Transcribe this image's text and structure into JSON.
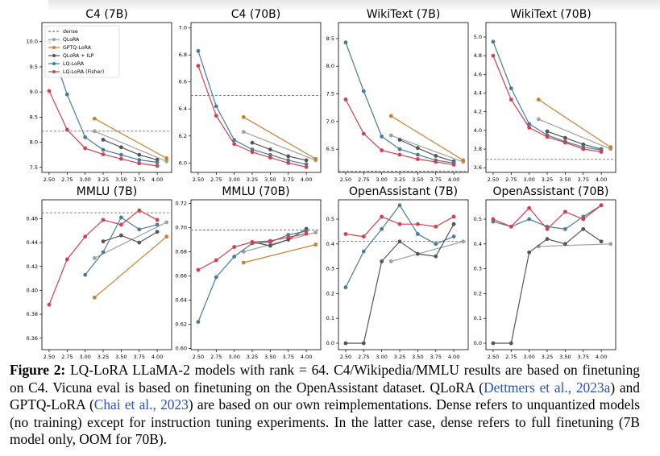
{
  "chart_data": [
    {
      "type": "line",
      "title": "C4 (7B)",
      "legend": "upper left",
      "xlim": [
        2.4,
        4.2
      ],
      "xticks": [
        {
          "value": 2.5,
          "label": "2.50"
        },
        2.75,
        {
          "value": 3.0,
          "label": "3.00"
        },
        3.25,
        {
          "value": 3.5,
          "label": "3.50"
        },
        3.75,
        {
          "value": 4.0,
          "label": "4.00"
        }
      ],
      "ylim": [
        7.4,
        10.38
      ],
      "yticks": [
        7.5,
        {
          "value": 8.0,
          "label": "8.0"
        },
        8.5,
        {
          "value": 9.0,
          "label": "9.0"
        },
        9.5,
        {
          "value": 10.0,
          "label": "10.0"
        }
      ],
      "series": [
        {
          "name": "dense",
          "color": "#777777",
          "dashed": true,
          "values": [
            8.22
          ]
        },
        {
          "name": "QLoRA",
          "color": "#a0a0a0",
          "x": [
            3.13,
            4.13
          ],
          "values": [
            8.22,
            7.62
          ]
        },
        {
          "name": "GPTQ-LoRA",
          "color": "#c8802e",
          "x": [
            3.13,
            4.13
          ],
          "values": [
            8.47,
            7.68
          ]
        },
        {
          "name": "QLoRA + ILP",
          "color": "#555555",
          "x": [
            3.25,
            3.5,
            3.75,
            4.0
          ],
          "values": [
            8.05,
            7.9,
            7.75,
            7.65
          ]
        },
        {
          "name": "LQ-LoRA",
          "color": "#4a7b9d",
          "x": [
            2.5,
            2.75,
            3.0,
            3.25,
            3.5,
            3.75,
            4.0
          ],
          "values": [
            10.0,
            8.95,
            8.1,
            7.85,
            7.75,
            7.65,
            7.6
          ]
        },
        {
          "name": "LQ-LoRA (Fisher)",
          "color": "#d6404e",
          "x": [
            2.5,
            2.75,
            3.0,
            3.25,
            3.5,
            3.75,
            4.0
          ],
          "values": [
            9.02,
            8.25,
            7.88,
            7.76,
            7.67,
            7.58,
            7.53
          ]
        }
      ]
    },
    {
      "type": "line",
      "title": "C4 (70B)",
      "xlim": [
        2.4,
        4.2
      ],
      "xticks": [
        {
          "value": 2.5,
          "label": "2.50"
        },
        2.75,
        {
          "value": 3.0,
          "label": "3.00"
        },
        3.25,
        {
          "value": 3.5,
          "label": "3.50"
        },
        3.75,
        {
          "value": 4.0,
          "label": "4.00"
        }
      ],
      "ylim": [
        5.93,
        7.04
      ],
      "yticks": [
        {
          "value": 6.0,
          "label": "6.0"
        },
        6.2,
        6.4,
        6.6,
        6.8,
        {
          "value": 7.0,
          "label": "7.0"
        }
      ],
      "series": [
        {
          "color": "#777777",
          "dashed": true,
          "values": [
            6.5
          ]
        },
        {
          "color": "#a0a0a0",
          "x": [
            3.13,
            4.13
          ],
          "values": [
            6.23,
            6.02
          ]
        },
        {
          "color": "#c8802e",
          "x": [
            3.13,
            4.13
          ],
          "values": [
            6.34,
            6.03
          ]
        },
        {
          "color": "#555555",
          "x": [
            3.25,
            3.5,
            3.75,
            4.0
          ],
          "values": [
            6.15,
            6.1,
            6.05,
            6.02
          ]
        },
        {
          "color": "#4a7b9d",
          "x": [
            2.5,
            2.75,
            3.0,
            3.25,
            3.5,
            3.75,
            4.0
          ],
          "values": [
            6.83,
            6.42,
            6.17,
            6.1,
            6.06,
            6.02,
            5.99
          ]
        },
        {
          "color": "#d6404e",
          "x": [
            2.5,
            2.75,
            3.0,
            3.25,
            3.5,
            3.75,
            4.0
          ],
          "values": [
            6.72,
            6.35,
            6.14,
            6.08,
            6.04,
            6.0,
            5.97
          ]
        }
      ]
    },
    {
      "type": "line",
      "title": "WikiText (7B)",
      "xlim": [
        2.4,
        4.2
      ],
      "xticks": [
        {
          "value": 2.5,
          "label": "2.50"
        },
        2.75,
        {
          "value": 3.0,
          "label": "3.00"
        },
        3.25,
        {
          "value": 3.5,
          "label": "3.50"
        },
        3.75,
        {
          "value": 4.0,
          "label": "4.00"
        }
      ],
      "ylim": [
        6.08,
        8.79
      ],
      "yticks": [
        6.5,
        {
          "value": 7.0,
          "label": "7.0"
        },
        7.5,
        {
          "value": 8.0,
          "label": "8.0"
        },
        8.5
      ],
      "series": [
        {
          "color": "#777777",
          "dashed": true,
          "values": [
            6.1
          ]
        },
        {
          "color": "#a0a0a0",
          "x": [
            3.13,
            4.13
          ],
          "values": [
            6.75,
            6.27
          ]
        },
        {
          "color": "#c8802e",
          "x": [
            3.13,
            4.13
          ],
          "values": [
            7.1,
            6.3
          ]
        },
        {
          "color": "#555555",
          "x": [
            3.25,
            3.5,
            3.75,
            4.0
          ],
          "values": [
            6.67,
            6.52,
            6.38,
            6.28
          ]
        },
        {
          "color": "#4a7b9d",
          "x": [
            2.5,
            2.75,
            3.0,
            3.25,
            3.5,
            3.75,
            4.0
          ],
          "values": [
            8.43,
            7.55,
            6.73,
            6.5,
            6.4,
            6.3,
            6.25
          ]
        },
        {
          "color": "#d6404e",
          "x": [
            2.5,
            2.75,
            3.0,
            3.25,
            3.5,
            3.75,
            4.0
          ],
          "values": [
            7.4,
            6.78,
            6.48,
            6.4,
            6.32,
            6.27,
            6.22
          ]
        }
      ]
    },
    {
      "type": "line",
      "title": "WikiText (70B)",
      "xlim": [
        2.4,
        4.2
      ],
      "xticks": [
        {
          "value": 2.5,
          "label": "2.50"
        },
        2.75,
        {
          "value": 3.0,
          "label": "3.00"
        },
        3.25,
        {
          "value": 3.5,
          "label": "3.50"
        },
        3.75,
        {
          "value": 4.0,
          "label": "4.00"
        }
      ],
      "ylim": [
        3.55,
        5.155
      ],
      "yticks": [
        3.6,
        3.8,
        {
          "value": 4.0,
          "label": "4.0"
        },
        4.2,
        4.4,
        4.6,
        4.8,
        {
          "value": 5.0,
          "label": "5.0"
        }
      ],
      "series": [
        {
          "color": "#777777",
          "dashed": true,
          "values": [
            3.69
          ]
        },
        {
          "color": "#a0a0a0",
          "x": [
            3.13,
            4.13
          ],
          "values": [
            4.12,
            3.8
          ]
        },
        {
          "color": "#c8802e",
          "x": [
            3.13,
            4.13
          ],
          "values": [
            4.33,
            3.82
          ]
        },
        {
          "color": "#555555",
          "x": [
            3.25,
            3.5,
            3.75,
            4.0
          ],
          "values": [
            3.99,
            3.92,
            3.85,
            3.8
          ]
        },
        {
          "color": "#4a7b9d",
          "x": [
            2.5,
            2.75,
            3.0,
            3.25,
            3.5,
            3.75,
            4.0
          ],
          "values": [
            4.95,
            4.45,
            4.07,
            3.95,
            3.88,
            3.82,
            3.79
          ]
        },
        {
          "color": "#d6404e",
          "x": [
            2.5,
            2.75,
            3.0,
            3.25,
            3.5,
            3.75,
            4.0
          ],
          "values": [
            4.8,
            4.33,
            4.03,
            3.93,
            3.87,
            3.8,
            3.77
          ]
        }
      ]
    },
    {
      "type": "line",
      "title": "MMLU (7B)",
      "xlim": [
        2.4,
        4.2
      ],
      "xticks": [
        {
          "value": 2.5,
          "label": "2.50"
        },
        2.75,
        {
          "value": 3.0,
          "label": "3.00"
        },
        3.25,
        {
          "value": 3.5,
          "label": "3.50"
        },
        3.75,
        {
          "value": 4.0,
          "label": "4.00"
        }
      ],
      "ylim": [
        0.3504,
        0.4758
      ],
      "yticks": [
        0.36,
        0.38,
        {
          "value": 0.4,
          "label": "0.40"
        },
        0.42,
        0.44,
        0.46
      ],
      "series": [
        {
          "color": "#777777",
          "dashed": true,
          "values": [
            0.465
          ]
        },
        {
          "color": "#a0a0a0",
          "x": [
            3.13,
            4.13
          ],
          "values": [
            0.427,
            0.457
          ]
        },
        {
          "color": "#c8802e",
          "x": [
            3.13,
            4.13
          ],
          "values": [
            0.394,
            0.445
          ]
        },
        {
          "color": "#555555",
          "x": [
            3.25,
            3.5,
            3.75,
            4.0
          ],
          "values": [
            0.441,
            0.446,
            0.44,
            0.449
          ]
        },
        {
          "color": "#4a7b9d",
          "x": [
            3.0,
            3.25,
            3.5,
            3.75,
            4.0
          ],
          "values": [
            0.413,
            0.432,
            0.461,
            0.451,
            0.455
          ]
        },
        {
          "color": "#d6404e",
          "x": [
            2.5,
            2.75,
            3.0,
            3.25,
            3.5,
            3.75,
            4.0
          ],
          "values": [
            0.388,
            0.426,
            0.445,
            0.459,
            0.455,
            0.467,
            0.459
          ]
        }
      ]
    },
    {
      "type": "line",
      "title": "MMLU (70B)",
      "xlim": [
        2.4,
        4.2
      ],
      "xticks": [
        {
          "value": 2.5,
          "label": "2.50"
        },
        2.75,
        {
          "value": 3.0,
          "label": "3.00"
        },
        3.25,
        {
          "value": 3.5,
          "label": "3.50"
        },
        3.75,
        {
          "value": 4.0,
          "label": "4.00"
        }
      ],
      "ylim": [
        0.599,
        0.723
      ],
      "yticks": [
        {
          "value": 0.6,
          "label": "0.60"
        },
        0.62,
        0.64,
        0.66,
        0.68,
        {
          "value": 0.7,
          "label": "0.70"
        },
        0.72
      ],
      "series": [
        {
          "color": "#777777",
          "dashed": true,
          "values": [
            0.698
          ]
        },
        {
          "color": "#a0a0a0",
          "x": [
            3.13,
            4.13
          ],
          "values": [
            0.68,
            0.696
          ]
        },
        {
          "color": "#c8802e",
          "x": [
            3.13,
            4.13
          ],
          "values": [
            0.671,
            0.686
          ]
        },
        {
          "color": "#555555",
          "x": [
            3.25,
            3.5,
            3.75,
            4.0
          ],
          "values": [
            0.688,
            0.685,
            0.69,
            0.699
          ]
        },
        {
          "color": "#4a7b9d",
          "x": [
            2.5,
            2.75,
            3.0,
            3.25,
            3.5,
            3.75,
            4.0
          ],
          "values": [
            0.622,
            0.659,
            0.676,
            0.687,
            0.688,
            0.694,
            0.697
          ]
        },
        {
          "color": "#d6404e",
          "x": [
            2.5,
            2.75,
            3.0,
            3.25,
            3.5,
            3.75,
            4.0
          ],
          "values": [
            0.665,
            0.673,
            0.684,
            0.688,
            0.689,
            0.692,
            0.695
          ]
        }
      ]
    },
    {
      "type": "line",
      "title": "OpenAssistant (7B)",
      "xlim": [
        2.4,
        4.2
      ],
      "xticks": [
        {
          "value": 2.5,
          "label": "2.50"
        },
        2.75,
        {
          "value": 3.0,
          "label": "3.00"
        },
        3.25,
        {
          "value": 3.5,
          "label": "3.50"
        },
        3.75,
        {
          "value": 4.0,
          "label": "4.00"
        }
      ],
      "ylim": [
        -0.026,
        0.578
      ],
      "yticks": [
        {
          "value": 0,
          "label": "0.0"
        },
        0.1,
        0.2,
        0.3,
        0.4,
        0.5
      ],
      "series": [
        {
          "color": "#777777",
          "dashed": true,
          "values": [
            0.41
          ]
        },
        {
          "color": "#a0a0a0",
          "x": [
            3.13,
            4.13
          ],
          "values": [
            0.33,
            0.41
          ]
        },
        {
          "color": "#555555",
          "x": [
            2.5,
            2.75,
            3.0,
            3.25,
            3.5,
            3.75,
            4.0
          ],
          "values": [
            0,
            0,
            0.33,
            0.41,
            0.36,
            0.35,
            0.48
          ]
        },
        {
          "color": "#4a7b9d",
          "x": [
            2.5,
            2.75,
            3.0,
            3.25,
            3.5,
            3.75,
            4.0
          ],
          "values": [
            0.225,
            0.37,
            0.46,
            0.556,
            0.44,
            0.4,
            0.43
          ]
        },
        {
          "color": "#d6404e",
          "x": [
            2.5,
            2.75,
            3.0,
            3.25,
            3.5,
            3.75,
            4.0
          ],
          "values": [
            0.44,
            0.43,
            0.51,
            0.48,
            0.48,
            0.47,
            0.51
          ]
        }
      ]
    },
    {
      "type": "line",
      "title": "OpenAssistant (70B)",
      "xlim": [
        2.4,
        4.2
      ],
      "xticks": [
        {
          "value": 2.5,
          "label": "2.50"
        },
        2.75,
        {
          "value": 3.0,
          "label": "3.00"
        },
        3.25,
        {
          "value": 3.5,
          "label": "3.50"
        },
        3.75,
        {
          "value": 4.0,
          "label": "4.00"
        }
      ],
      "ylim": [
        -0.026,
        0.578
      ],
      "yticks": [
        {
          "value": 0,
          "label": "0.0"
        },
        0.1,
        0.2,
        0.3,
        0.4,
        0.5
      ],
      "series": [
        {
          "color": "#a0a0a0",
          "x": [
            3.13,
            4.13
          ],
          "values": [
            0.39,
            0.4
          ]
        },
        {
          "color": "#555555",
          "x": [
            2.5,
            2.75,
            3.0,
            3.25,
            3.5,
            3.75,
            4.0
          ],
          "values": [
            0,
            0,
            0.366,
            0.42,
            0.4,
            0.46,
            0.41
          ]
        },
        {
          "color": "#4a7b9d",
          "x": [
            2.5,
            2.75,
            3.0,
            3.25,
            3.5,
            3.75,
            4.0
          ],
          "values": [
            0.49,
            0.47,
            0.5,
            0.47,
            0.46,
            0.51,
            0.556
          ]
        },
        {
          "color": "#d6404e",
          "x": [
            2.5,
            2.75,
            3.0,
            3.25,
            3.5,
            3.75,
            4.0
          ],
          "values": [
            0.5,
            0.47,
            0.545,
            0.46,
            0.53,
            0.5,
            0.556
          ]
        }
      ]
    }
  ],
  "caption": {
    "label": "Figure 2:",
    "parts": [
      {
        "text": " LQ-LoRA LLaMA-2 models with rank = 64. C4/Wikipedia/MMLU results are based on finetuning on C4. Vicuna eval is based on finetuning on the OpenAssistant dataset. QLoRA ("
      },
      {
        "cite": "Dettmers et al., 2023a"
      },
      {
        "text": ") and GPTQ-LoRA ("
      },
      {
        "cite": "Chai et al., 2023"
      },
      {
        "text": ") are based on our own reimplementations. Dense refers to unquantized models (no training) except for instruction tuning experiments. In the latter case, dense refers to full finetuning (7B model only, OOM for 70B)."
      }
    ]
  }
}
